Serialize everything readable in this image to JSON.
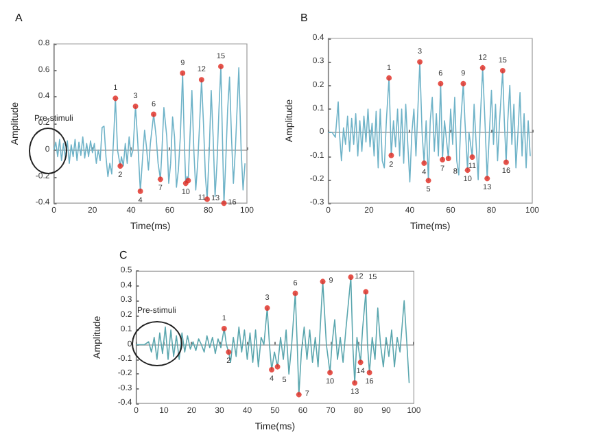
{
  "chart_data": [
    {
      "type": "line",
      "title": "A",
      "xlabel": "Time(ms)",
      "ylabel": "Amplitude",
      "xlim": [
        0,
        100
      ],
      "xticks": [
        0,
        20,
        40,
        60,
        80,
        100
      ],
      "ylim": [
        -0.4,
        0.8
      ],
      "yticks": [
        -0.4,
        -0.2,
        0,
        0.2,
        0.4,
        0.6,
        0.8
      ],
      "series": [
        {
          "type": "line",
          "color": "#6fb3c8",
          "x": [
            0,
            1,
            2,
            3,
            4,
            5,
            6,
            7,
            8,
            9,
            10,
            11,
            12,
            13,
            14,
            15,
            16,
            17,
            18,
            19,
            20,
            21,
            22,
            23,
            24,
            25,
            26,
            27,
            28,
            29,
            30,
            31,
            31.9,
            33,
            34.4,
            35,
            36,
            37,
            38,
            39,
            40,
            41,
            42.3,
            43.5,
            44.8,
            46,
            47,
            48,
            49,
            50,
            51.7,
            53,
            54,
            55.2,
            56,
            57,
            58.5,
            59.5,
            60.5,
            61.5,
            62.5,
            63.5,
            64.5,
            65.5,
            66.7,
            67.5,
            68.3,
            69,
            69.6,
            70.5,
            71.5,
            72.5,
            73.5,
            74.5,
            75.5,
            76.5,
            77.5,
            78.5,
            79.4,
            80.5,
            81.5,
            82.5,
            83.5,
            84.5,
            85.5,
            86.5,
            87.3,
            88.1,
            89,
            90,
            91,
            92,
            93,
            94,
            95.8,
            97,
            98,
            99
          ],
          "values": [
            0,
            0.06,
            -0.05,
            0.08,
            -0.08,
            0.05,
            -0.06,
            0.07,
            -0.1,
            0.04,
            -0.05,
            0.08,
            -0.08,
            0.06,
            -0.04,
            0.1,
            -0.06,
            0.05,
            -0.05,
            0.07,
            -0.02,
            0.05,
            -0.1,
            0,
            -0.08,
            0.17,
            0.18,
            -0.05,
            -0.2,
            -0.1,
            -0.18,
            0.1,
            0.39,
            0,
            -0.12,
            -0.05,
            -0.12,
            0.05,
            -0.1,
            0.1,
            -0.05,
            0,
            0.33,
            0.05,
            -0.31,
            -0.05,
            0.15,
            0.02,
            -0.15,
            0.05,
            0.27,
            0.1,
            -0.1,
            -0.22,
            0,
            0.32,
            0.1,
            -0.25,
            -0.1,
            0.25,
            0.1,
            -0.28,
            -0.15,
            0.1,
            0.58,
            0.1,
            -0.25,
            -0.2,
            -0.23,
            0.1,
            0.45,
            0,
            -0.3,
            -0.1,
            0.2,
            0.53,
            0.2,
            -0.2,
            -0.37,
            0,
            0.45,
            0.1,
            -0.35,
            -0.1,
            0.3,
            0.63,
            0.1,
            -0.4,
            -0.1,
            0.3,
            0.55,
            0.1,
            -0.25,
            0,
            0.62,
            0,
            -0.3,
            -0.1
          ]
        },
        {
          "type": "scatter",
          "color": "#e0281e",
          "marker": "circle",
          "x": [
            31.9,
            34.4,
            42.3,
            44.8,
            51.7,
            55.2,
            66.7,
            68.3,
            69.6,
            76.5,
            79.4,
            86.5,
            88.1
          ],
          "values": [
            0.39,
            -0.12,
            0.33,
            -0.31,
            0.27,
            -0.22,
            0.58,
            -0.25,
            -0.23,
            0.53,
            -0.37,
            0.63,
            -0.4
          ]
        }
      ],
      "annotations": [
        "Pre-stimuli",
        {
          "text": "1",
          "x": 31.9,
          "y": 0.39
        },
        {
          "text": "2",
          "x": 34.4,
          "y": -0.12
        },
        {
          "text": "3",
          "x": 42.3,
          "y": 0.33
        },
        {
          "text": "4",
          "x": 44.8,
          "y": -0.31
        },
        {
          "text": "6",
          "x": 51.7,
          "y": 0.27
        },
        {
          "text": "7",
          "x": 55.2,
          "y": -0.22
        },
        {
          "text": "9",
          "x": 66.7,
          "y": 0.58
        },
        {
          "text": "10",
          "x": 68.3,
          "y": -0.25
        },
        {
          "text": "11",
          "x": 69.6,
          "y": -0.23
        },
        {
          "text": "12",
          "x": 76.5,
          "y": 0.53
        },
        {
          "text": "13",
          "x": 79.4,
          "y": -0.37
        },
        {
          "text": "15",
          "x": 86.5,
          "y": 0.63
        },
        {
          "text": "16",
          "x": 88.1,
          "y": -0.4
        }
      ]
    },
    {
      "type": "line",
      "title": "B",
      "xlabel": "Time(ms)",
      "ylabel": "Amplitude",
      "xlim": [
        0,
        100
      ],
      "xticks": [
        0,
        20,
        40,
        60,
        80,
        100
      ],
      "ylim": [
        -0.3,
        0.4
      ],
      "yticks": [
        -0.3,
        -0.2,
        -0.1,
        0,
        0.1,
        0.2,
        0.3,
        0.4
      ],
      "series": [
        {
          "type": "line",
          "color": "#6fb3c8",
          "x": [
            0,
            2,
            3.5,
            4.9,
            5.5,
            6.5,
            7.5,
            8.5,
            9.5,
            10.5,
            11.5,
            12.5,
            13.5,
            14.5,
            15.5,
            16.5,
            17.5,
            18.5,
            19.5,
            20.5,
            21.5,
            22.5,
            23.5,
            24.5,
            25.5,
            26.5,
            27.5,
            28.5,
            29.8,
            30.9,
            32,
            33,
            34,
            35,
            36,
            37,
            38,
            39,
            40,
            41,
            42,
            43,
            44.9,
            46,
            47,
            48,
            49.1,
            50,
            51,
            52,
            53,
            54,
            55.1,
            56,
            57,
            58.9,
            60,
            61,
            62,
            63,
            64,
            65,
            66.2,
            67,
            68.3,
            69,
            70.6,
            71.5,
            72.5,
            73.5,
            74.5,
            75.7,
            76.8,
            77.9,
            79,
            80,
            81,
            82,
            83,
            84,
            85.5,
            86.3,
            87.2,
            88,
            89,
            90,
            91,
            92,
            93,
            94,
            95,
            96,
            97,
            98,
            99
          ],
          "values": [
            0,
            0,
            -0.02,
            0.13,
            0,
            -0.12,
            0.02,
            -0.05,
            0.07,
            -0.08,
            0.06,
            -0.05,
            0.08,
            -0.1,
            0.05,
            -0.08,
            0.07,
            -0.04,
            0.1,
            -0.06,
            0.04,
            -0.1,
            0.09,
            -0.15,
            0.1,
            -0.12,
            -0.15,
            0.05,
            0.232,
            -0.097,
            0.05,
            -0.06,
            0.1,
            -0.1,
            0.1,
            -0.13,
            0.12,
            -0.05,
            -0.21,
            0,
            0.1,
            -0.1,
            0.3,
            0,
            -0.13,
            0.05,
            -0.204,
            0.05,
            0.15,
            -0.08,
            0.08,
            -0.1,
            0.208,
            -0.115,
            0.05,
            -0.11,
            0.1,
            -0.05,
            0.15,
            -0.12,
            -0.18,
            0.05,
            0.208,
            0.05,
            -0.16,
            0,
            -0.104,
            0.12,
            -0.05,
            -0.2,
            0.05,
            0.275,
            0.05,
            -0.195,
            0,
            0.18,
            -0.05,
            0.12,
            -0.12,
            0.05,
            0.263,
            0.05,
            -0.126,
            0.05,
            0.2,
            -0.05,
            0.12,
            -0.15,
            0,
            0.17,
            -0.1,
            0.08,
            -0.15,
            0.05,
            -0.1
          ]
        },
        {
          "type": "scatter",
          "color": "#e0281e",
          "marker": "circle",
          "x": [
            29.8,
            30.9,
            44.9,
            47,
            49.1,
            55.1,
            56,
            58.9,
            66.2,
            68.3,
            70.6,
            75.7,
            77.9,
            85.5,
            87.2
          ],
          "values": [
            0.232,
            -0.097,
            0.3,
            -0.13,
            -0.204,
            0.208,
            -0.115,
            -0.11,
            0.208,
            -0.16,
            -0.104,
            0.275,
            -0.195,
            0.263,
            -0.126
          ]
        }
      ],
      "annotations": [
        {
          "text": "1",
          "x": 29.8,
          "y": 0.232
        },
        {
          "text": "2",
          "x": 30.9,
          "y": -0.097
        },
        {
          "text": "3",
          "x": 44.9,
          "y": 0.3
        },
        {
          "text": "4",
          "x": 47,
          "y": -0.13
        },
        {
          "text": "5",
          "x": 49.1,
          "y": -0.204
        },
        {
          "text": "6",
          "x": 55.1,
          "y": 0.208
        },
        {
          "text": "7",
          "x": 56,
          "y": -0.115
        },
        {
          "text": "8",
          "x": 58.9,
          "y": -0.11
        },
        {
          "text": "9",
          "x": 66.2,
          "y": 0.208
        },
        {
          "text": "10",
          "x": 68.3,
          "y": -0.16
        },
        {
          "text": "11",
          "x": 70.6,
          "y": -0.104
        },
        {
          "text": "12",
          "x": 75.7,
          "y": 0.275
        },
        {
          "text": "13",
          "x": 77.9,
          "y": -0.195
        },
        {
          "text": "15",
          "x": 85.5,
          "y": 0.263
        },
        {
          "text": "16",
          "x": 87.2,
          "y": -0.126
        }
      ]
    },
    {
      "type": "line",
      "title": "C",
      "xlabel": "Time(ms)",
      "ylabel": "Amplitude",
      "xlim": [
        0,
        100
      ],
      "xticks": [
        0,
        10,
        20,
        30,
        40,
        50,
        60,
        70,
        80,
        90,
        100
      ],
      "ylim": [
        -0.4,
        0.5
      ],
      "yticks": [
        -0.4,
        -0.3,
        -0.2,
        -0.1,
        0,
        0.1,
        0.2,
        0.3,
        0.4,
        0.5
      ],
      "series": [
        {
          "type": "line",
          "color": "#5aa6ae",
          "x": [
            0,
            3,
            4.5,
            5.5,
            6.5,
            7.5,
            8.5,
            9.5,
            10.5,
            11.5,
            12.5,
            13.5,
            14.5,
            15.5,
            16.5,
            17.5,
            18.5,
            19.5,
            20.5,
            21.5,
            22.5,
            23.5,
            24.5,
            25.5,
            26.5,
            27.5,
            28.5,
            29.5,
            30.5,
            31.7,
            32.5,
            33.3,
            34,
            35,
            36,
            37,
            38,
            39,
            40,
            41,
            42,
            43,
            44,
            45,
            46,
            47.2,
            48,
            48.8,
            49.8,
            50.9,
            52,
            53,
            54,
            55,
            56,
            57.3,
            58,
            58.6,
            59.5,
            60.5,
            61.5,
            62.5,
            63.5,
            64.5,
            65.5,
            67.2,
            68.5,
            69.8,
            70.5,
            71.5,
            72.5,
            73.5,
            74.5,
            75.5,
            77.3,
            78,
            78.7,
            79.5,
            80.8,
            81.5,
            82.7,
            83.3,
            84,
            85,
            86,
            87,
            88,
            89,
            90,
            91,
            92,
            93,
            94,
            95,
            96.5,
            97.5,
            98.3
          ],
          "values": [
            0,
            0,
            0.02,
            -0.05,
            0.05,
            -0.1,
            0.08,
            -0.06,
            0.12,
            -0.1,
            0.1,
            -0.08,
            0.06,
            -0.1,
            0.08,
            -0.05,
            0.06,
            -0.03,
            0.02,
            -0.04,
            0.04,
            0,
            -0.05,
            0.06,
            -0.02,
            0.05,
            -0.06,
            0.04,
            -0.02,
            0.11,
            0,
            -0.05,
            -0.12,
            0.05,
            -0.08,
            0.12,
            -0.05,
            0.1,
            -0.1,
            0.08,
            -0.12,
            0.1,
            -0.15,
            0.05,
            0,
            0.25,
            0,
            -0.17,
            -0.05,
            -0.15,
            0.05,
            -0.1,
            0.1,
            -0.2,
            0,
            0.35,
            0,
            -0.34,
            -0.05,
            0.12,
            -0.1,
            0.1,
            -0.12,
            0.05,
            -0.15,
            0.43,
            0,
            -0.19,
            0,
            0.17,
            -0.1,
            0.05,
            -0.12,
            0.1,
            0.46,
            0,
            -0.26,
            0.05,
            -0.12,
            0.1,
            0.36,
            0,
            -0.19,
            0.05,
            -0.1,
            0.25,
            0,
            -0.15,
            0.05,
            -0.08,
            0.1,
            -0.15,
            0.05,
            -0.05,
            0.3,
            0,
            -0.26
          ]
        },
        {
          "type": "scatter",
          "color": "#e0281e",
          "marker": "circle",
          "x": [
            31.7,
            33.3,
            47.2,
            48.8,
            50.9,
            57.3,
            58.6,
            67.2,
            69.8,
            77.3,
            78.7,
            80.8,
            82.7,
            84
          ],
          "values": [
            0.11,
            -0.05,
            0.25,
            -0.17,
            -0.15,
            0.35,
            -0.34,
            0.43,
            -0.19,
            0.46,
            -0.26,
            -0.12,
            0.36,
            -0.19
          ]
        }
      ],
      "annotations": [
        "Pre-stimuli",
        {
          "text": "1",
          "x": 31.7,
          "y": 0.11
        },
        {
          "text": "2",
          "x": 33.3,
          "y": -0.05
        },
        {
          "text": "3",
          "x": 47.2,
          "y": 0.25
        },
        {
          "text": "4",
          "x": 48.8,
          "y": -0.17
        },
        {
          "text": "5",
          "x": 50.9,
          "y": -0.15
        },
        {
          "text": "6",
          "x": 57.3,
          "y": 0.35
        },
        {
          "text": "7",
          "x": 58.6,
          "y": -0.34
        },
        {
          "text": "9",
          "x": 67.2,
          "y": 0.43
        },
        {
          "text": "10",
          "x": 69.8,
          "y": -0.19
        },
        {
          "text": "12",
          "x": 77.3,
          "y": 0.46
        },
        {
          "text": "13",
          "x": 78.7,
          "y": -0.26
        },
        {
          "text": "14",
          "x": 80.8,
          "y": -0.12
        },
        {
          "text": "15",
          "x": 82.7,
          "y": 0.36
        },
        {
          "text": "16",
          "x": 84,
          "y": -0.19
        }
      ]
    }
  ]
}
